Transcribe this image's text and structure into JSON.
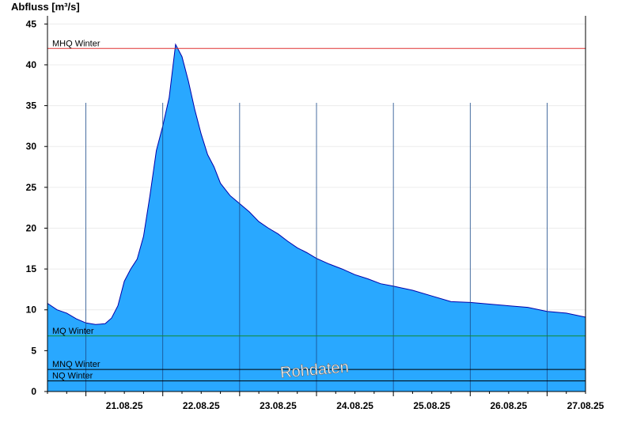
{
  "chart_data": {
    "type": "area",
    "ylabel": "Abfluss [m³/s]",
    "ylim": [
      0,
      46
    ],
    "yticks": [
      0,
      5,
      10,
      15,
      20,
      25,
      30,
      35,
      40,
      45
    ],
    "x_range": [
      "2025-08-20 12:00",
      "2025-08-27 12:00"
    ],
    "x_day_lines": [
      "2025-08-21 00:00",
      "2025-08-22 00:00",
      "2025-08-23 00:00",
      "2025-08-24 00:00",
      "2025-08-25 00:00",
      "2025-08-26 00:00",
      "2025-08-27 00:00"
    ],
    "xticks": [
      {
        "label": "21.08.25",
        "at": "2025-08-21 12:00"
      },
      {
        "label": "22.08.25",
        "at": "2025-08-22 12:00"
      },
      {
        "label": "23.08.25",
        "at": "2025-08-23 12:00"
      },
      {
        "label": "24.08.25",
        "at": "2025-08-24 12:00"
      },
      {
        "label": "25.08.25",
        "at": "2025-08-25 12:00"
      },
      {
        "label": "26.08.25",
        "at": "2025-08-26 12:00"
      },
      {
        "label": "27.08.25",
        "at": "2025-08-27 12:00"
      }
    ],
    "grid": true,
    "fill_color": "#29a8ff",
    "line_color": "#0000aa",
    "series": [
      {
        "x": [
          "2025-08-20 12:00",
          "2025-08-20 15:00",
          "2025-08-20 18:00",
          "2025-08-20 21:00",
          "2025-08-21 00:00",
          "2025-08-21 03:00",
          "2025-08-21 06:00",
          "2025-08-21 08:00",
          "2025-08-21 10:00",
          "2025-08-21 12:00",
          "2025-08-21 14:00",
          "2025-08-21 16:00",
          "2025-08-21 18:00",
          "2025-08-21 20:00",
          "2025-08-21 22:00",
          "2025-08-22 00:00",
          "2025-08-22 02:00",
          "2025-08-22 04:00",
          "2025-08-22 06:00",
          "2025-08-22 08:00",
          "2025-08-22 10:00",
          "2025-08-22 12:00",
          "2025-08-22 14:00",
          "2025-08-22 16:00",
          "2025-08-22 18:00",
          "2025-08-22 21:00",
          "2025-08-23 00:00",
          "2025-08-23 03:00",
          "2025-08-23 06:00",
          "2025-08-23 09:00",
          "2025-08-23 12:00",
          "2025-08-23 15:00",
          "2025-08-23 18:00",
          "2025-08-23 21:00",
          "2025-08-24 00:00",
          "2025-08-24 04:00",
          "2025-08-24 08:00",
          "2025-08-24 12:00",
          "2025-08-24 16:00",
          "2025-08-24 20:00",
          "2025-08-25 00:00",
          "2025-08-25 06:00",
          "2025-08-25 12:00",
          "2025-08-25 18:00",
          "2025-08-26 00:00",
          "2025-08-26 06:00",
          "2025-08-26 12:00",
          "2025-08-26 18:00",
          "2025-08-27 00:00",
          "2025-08-27 06:00",
          "2025-08-27 12:00"
        ],
        "values": [
          10.8,
          10.0,
          9.6,
          8.9,
          8.4,
          8.2,
          8.3,
          9.0,
          10.5,
          13.5,
          15.0,
          16.2,
          19.0,
          24.0,
          29.5,
          32.5,
          36.0,
          42.5,
          41.0,
          38.0,
          34.5,
          31.5,
          29.0,
          27.5,
          25.5,
          24.0,
          23.0,
          22.0,
          20.8,
          20.0,
          19.3,
          18.4,
          17.6,
          17.0,
          16.3,
          15.6,
          15.0,
          14.3,
          13.8,
          13.2,
          12.9,
          12.4,
          11.7,
          11.0,
          10.9,
          10.7,
          10.5,
          10.3,
          9.8,
          9.6,
          9.1
        ]
      }
    ],
    "reference_lines": [
      {
        "name": "MHQ Winter",
        "value": 42.0,
        "color": "#e03030"
      },
      {
        "name": "MQ Winter",
        "value": 6.8,
        "color": "#108a30"
      },
      {
        "name": "MNQ Winter",
        "value": 2.7,
        "color": "#000000"
      },
      {
        "name": "NQ Winter",
        "value": 1.3,
        "color": "#000000"
      }
    ],
    "watermark": "Rohdaten"
  }
}
